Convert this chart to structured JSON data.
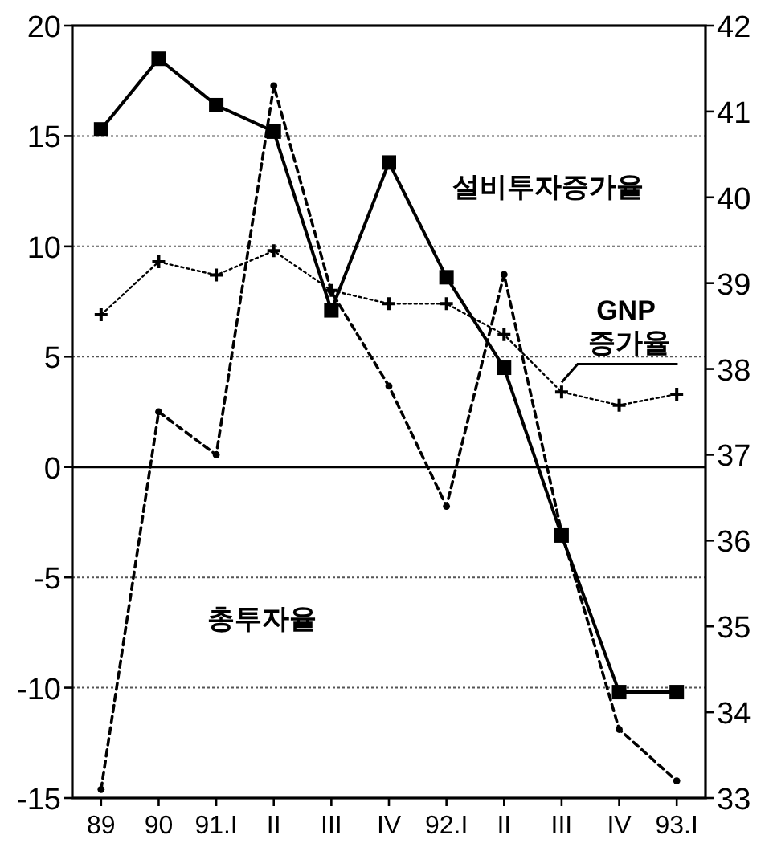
{
  "chart_data": {
    "type": "line",
    "categories": [
      "89",
      "90",
      "91.I",
      "II",
      "III",
      "IV",
      "92.I",
      "II",
      "III",
      "IV",
      "93.I"
    ],
    "series": [
      {
        "name": "설비투자증가율",
        "color": "#000000",
        "marker": "square",
        "line_style": "solid",
        "values": [
          15.3,
          18.5,
          16.4,
          15.2,
          7.1,
          13.8,
          8.6,
          4.5,
          -3.1,
          -10.2,
          -10.2
        ]
      },
      {
        "name": "GNP 증가율",
        "color": "#000000",
        "marker": "cross",
        "line_style": "dotted",
        "values": [
          6.9,
          9.3,
          8.7,
          9.8,
          8.0,
          7.4,
          7.4,
          6.0,
          3.4,
          2.8,
          3.3
        ]
      },
      {
        "name": "총투자율",
        "color": "#000000",
        "marker": "circle",
        "line_style": "dashed",
        "axis": "y2",
        "values": [
          33.1,
          37.5,
          37.0,
          41.3,
          38.9,
          37.8,
          36.4,
          39.1,
          36.1,
          33.8,
          33.2
        ]
      }
    ],
    "ylim": [
      -15,
      20
    ],
    "yticks": [
      -15,
      -10,
      -5,
      0,
      5,
      10,
      15,
      20
    ],
    "y2lim": [
      33,
      42
    ],
    "y2ticks": [
      33,
      34,
      35,
      36,
      37,
      38,
      39,
      40,
      41,
      42
    ],
    "grid": "y",
    "ref_lines": [
      {
        "axis": "y",
        "value": 0
      }
    ],
    "legend": false
  }
}
